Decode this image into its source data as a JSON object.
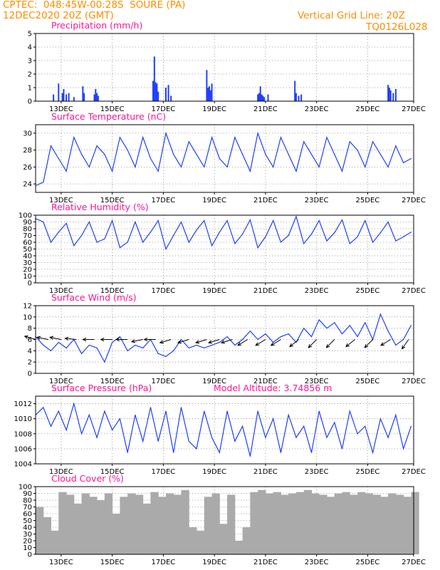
{
  "header": {
    "line1": "CPTEC:  048:45W-00:28S  SOURE (PA)",
    "line2": "12DEC2020 20Z (GMT)",
    "grid_note": "Vertical Grid Line: 20Z",
    "code": "TQ0126L028"
  },
  "colors": {
    "header": "#ff8c00",
    "title": "#ff1493",
    "series": "#1f3fff",
    "cloud": "#aaaaaa"
  },
  "x_ticks": [
    "13DEC",
    "15DEC",
    "17DEC",
    "19DEC",
    "21DEC",
    "23DEC",
    "25DEC",
    "27DEC"
  ],
  "chart_data": [
    {
      "type": "bar",
      "title": "Precipitation (mm/h)",
      "ylim": [
        0,
        5
      ],
      "yticks": [
        "0",
        "1",
        "2",
        "3",
        "4",
        "5"
      ],
      "x": [
        0.7,
        0.9,
        1.05,
        1.1,
        1.2,
        1.3,
        1.5,
        1.85,
        1.9,
        2.3,
        2.35,
        2.4,
        2.45,
        4.6,
        4.65,
        4.7,
        4.75,
        4.8,
        5.1,
        5.2,
        5.3,
        6.7,
        6.75,
        6.8,
        6.85,
        6.9,
        8.7,
        8.75,
        8.8,
        8.85,
        8.9,
        8.95,
        9.1,
        10.15,
        10.2,
        10.3,
        10.4,
        13.8,
        13.85,
        13.9,
        14.0,
        14.1
      ],
      "values": [
        0.5,
        1.3,
        0.6,
        0.9,
        0.5,
        0.6,
        0.3,
        1.1,
        0.6,
        0.5,
        0.9,
        0.6,
        0.4,
        1.5,
        3.3,
        1.4,
        1.3,
        0.7,
        1.0,
        1.2,
        0.4,
        2.3,
        1.0,
        1.1,
        0.8,
        1.3,
        0.5,
        0.6,
        1.1,
        0.5,
        0.4,
        0.3,
        0.5,
        1.5,
        0.6,
        0.4,
        0.5,
        1.2,
        1.0,
        0.8,
        0.6,
        0.9
      ]
    },
    {
      "type": "line",
      "title": "Surface Temperature (nC)",
      "ylim": [
        23,
        31
      ],
      "yticks": [
        "24",
        "26",
        "28",
        "30"
      ],
      "x": [
        0,
        0.3,
        0.6,
        0.9,
        1.2,
        1.5,
        1.8,
        2.1,
        2.4,
        2.7,
        3.0,
        3.3,
        3.6,
        3.9,
        4.2,
        4.5,
        4.8,
        5.1,
        5.4,
        5.7,
        6.0,
        6.3,
        6.6,
        6.9,
        7.2,
        7.5,
        7.8,
        8.1,
        8.4,
        8.7,
        9.0,
        9.3,
        9.6,
        9.9,
        10.2,
        10.5,
        10.8,
        11.1,
        11.4,
        11.7,
        12.0,
        12.3,
        12.6,
        12.9,
        13.2,
        13.5,
        13.8,
        14.1,
        14.4,
        14.7
      ],
      "y": [
        23.8,
        24.2,
        28.5,
        27.0,
        25.5,
        29.5,
        27.5,
        26.0,
        28.5,
        27.5,
        25.5,
        29.5,
        28.0,
        26.0,
        29.5,
        27.0,
        25.5,
        30.0,
        27.5,
        26.0,
        29.0,
        27.5,
        26.0,
        29.5,
        27.0,
        26.0,
        29.5,
        27.5,
        25.5,
        30.0,
        27.5,
        26.0,
        29.5,
        27.5,
        25.5,
        29.0,
        27.5,
        26.0,
        29.5,
        27.5,
        25.5,
        29.0,
        28.0,
        26.0,
        29.0,
        27.5,
        26.0,
        28.5,
        26.5,
        27.0
      ]
    },
    {
      "type": "line",
      "title": "Relative Humidity (%)",
      "ylim": [
        0,
        100
      ],
      "yticks": [
        "0",
        "10",
        "20",
        "30",
        "40",
        "50",
        "60",
        "70",
        "80",
        "90",
        "100"
      ],
      "x": [
        0,
        0.3,
        0.6,
        0.9,
        1.2,
        1.5,
        1.8,
        2.1,
        2.4,
        2.7,
        3.0,
        3.3,
        3.6,
        3.9,
        4.2,
        4.5,
        4.8,
        5.1,
        5.4,
        5.7,
        6.0,
        6.3,
        6.6,
        6.9,
        7.2,
        7.5,
        7.8,
        8.1,
        8.4,
        8.7,
        9.0,
        9.3,
        9.6,
        9.9,
        10.2,
        10.5,
        10.8,
        11.1,
        11.4,
        11.7,
        12.0,
        12.3,
        12.6,
        12.9,
        13.2,
        13.5,
        13.8,
        14.1,
        14.4,
        14.7
      ],
      "y": [
        95,
        90,
        60,
        75,
        88,
        55,
        70,
        90,
        60,
        65,
        92,
        52,
        60,
        90,
        60,
        75,
        92,
        50,
        70,
        90,
        60,
        78,
        92,
        55,
        75,
        92,
        58,
        72,
        93,
        52,
        68,
        92,
        60,
        70,
        98,
        58,
        72,
        92,
        62,
        74,
        93,
        58,
        68,
        92,
        60,
        74,
        90,
        62,
        68,
        75
      ]
    },
    {
      "type": "line",
      "title": "Surface Wind (m/s)",
      "ylim": [
        0,
        12
      ],
      "yticks": [
        "0",
        "2",
        "4",
        "6",
        "8",
        "10",
        "12"
      ],
      "x": [
        0,
        0.3,
        0.6,
        0.9,
        1.2,
        1.5,
        1.8,
        2.1,
        2.4,
        2.7,
        3.0,
        3.3,
        3.6,
        3.9,
        4.2,
        4.5,
        4.8,
        5.1,
        5.4,
        5.7,
        6.0,
        6.3,
        6.6,
        6.9,
        7.2,
        7.5,
        7.8,
        8.1,
        8.4,
        8.7,
        9.0,
        9.3,
        9.6,
        9.9,
        10.2,
        10.5,
        10.8,
        11.1,
        11.4,
        11.7,
        12.0,
        12.3,
        12.6,
        12.9,
        13.2,
        13.5,
        13.8,
        14.1,
        14.4,
        14.7
      ],
      "y": [
        6.5,
        5.0,
        4.0,
        5.5,
        4.5,
        6.0,
        3.5,
        5.0,
        4.5,
        2.0,
        5.5,
        6.5,
        4.0,
        5.0,
        4.5,
        6.0,
        3.5,
        3.0,
        4.0,
        6.0,
        4.5,
        5.0,
        4.5,
        5.0,
        5.5,
        6.5,
        5.0,
        6.0,
        7.5,
        6.0,
        7.0,
        5.5,
        6.5,
        7.0,
        5.5,
        8.0,
        6.5,
        9.5,
        8.0,
        9.0,
        7.0,
        8.5,
        6.5,
        9.0,
        6.0,
        10.5,
        7.5,
        5.0,
        6.0,
        8.5
      ],
      "arrows": [
        {
          "x": 0.0,
          "u": -1.0,
          "v": 0.3
        },
        {
          "x": 0.5,
          "u": -1.0,
          "v": 0.2
        },
        {
          "x": 1.0,
          "u": -1.0,
          "v": 0.2
        },
        {
          "x": 1.6,
          "u": -1.0,
          "v": 0.1
        },
        {
          "x": 2.3,
          "u": -1.0,
          "v": 0.0
        },
        {
          "x": 3.0,
          "u": -1.0,
          "v": 0.0
        },
        {
          "x": 3.6,
          "u": -1.0,
          "v": 0.0
        },
        {
          "x": 4.2,
          "u": -1.0,
          "v": -0.2
        },
        {
          "x": 4.7,
          "u": -1.0,
          "v": 0.0
        },
        {
          "x": 5.3,
          "u": -1.0,
          "v": -0.3
        },
        {
          "x": 6.0,
          "u": -1.0,
          "v": -0.3
        },
        {
          "x": 6.7,
          "u": -1.0,
          "v": -0.3
        },
        {
          "x": 7.2,
          "u": -1.0,
          "v": -0.3
        },
        {
          "x": 7.7,
          "u": -1.0,
          "v": -0.3
        },
        {
          "x": 8.3,
          "u": -1.0,
          "v": -0.6
        },
        {
          "x": 9.0,
          "u": -1.0,
          "v": -0.6
        },
        {
          "x": 9.6,
          "u": -1.0,
          "v": -0.6
        },
        {
          "x": 10.3,
          "u": -1.0,
          "v": -0.8
        },
        {
          "x": 11.0,
          "u": -1.0,
          "v": -1.0
        },
        {
          "x": 11.7,
          "u": -1.0,
          "v": -1.0
        },
        {
          "x": 12.5,
          "u": -1.0,
          "v": -0.8
        },
        {
          "x": 13.2,
          "u": -0.8,
          "v": -0.8
        },
        {
          "x": 13.9,
          "u": -1.0,
          "v": -0.6
        },
        {
          "x": 14.6,
          "u": -0.7,
          "v": -1.0
        }
      ]
    },
    {
      "type": "line",
      "title": "Surface Pressure (hPa)",
      "subtitle": "Model Altitude: 3.74856 m",
      "ylim": [
        1004,
        1013
      ],
      "yticks": [
        "1004",
        "1006",
        "1008",
        "1010",
        "1012"
      ],
      "x": [
        0,
        0.3,
        0.6,
        0.9,
        1.2,
        1.5,
        1.8,
        2.1,
        2.4,
        2.7,
        3.0,
        3.3,
        3.6,
        3.9,
        4.2,
        4.5,
        4.8,
        5.1,
        5.4,
        5.7,
        6.0,
        6.3,
        6.6,
        6.9,
        7.2,
        7.5,
        7.8,
        8.1,
        8.4,
        8.7,
        9.0,
        9.3,
        9.6,
        9.9,
        10.2,
        10.5,
        10.8,
        11.1,
        11.4,
        11.7,
        12.0,
        12.3,
        12.6,
        12.9,
        13.2,
        13.5,
        13.8,
        14.1,
        14.4,
        14.7
      ],
      "y": [
        1010.5,
        1011.5,
        1009.0,
        1011.0,
        1008.5,
        1012.0,
        1008.0,
        1010.5,
        1007.5,
        1011.0,
        1008.5,
        1010.0,
        1005.5,
        1010.5,
        1007.0,
        1011.5,
        1007.0,
        1011.0,
        1005.5,
        1011.5,
        1007.0,
        1006.0,
        1011.0,
        1007.5,
        1005.5,
        1011.0,
        1007.0,
        1009.0,
        1005.0,
        1011.0,
        1007.5,
        1010.0,
        1005.5,
        1010.5,
        1007.5,
        1009.0,
        1005.5,
        1011.0,
        1007.5,
        1009.5,
        1006.0,
        1011.0,
        1008.0,
        1009.0,
        1005.5,
        1010.0,
        1007.5,
        1010.5,
        1006.0,
        1009.0
      ]
    },
    {
      "type": "bar",
      "title": "Cloud Cover (%)",
      "ylim": [
        0,
        100
      ],
      "yticks": [
        "0",
        "10",
        "20",
        "30",
        "40",
        "50",
        "60",
        "70",
        "80",
        "90",
        "100"
      ],
      "x": [
        0.0,
        0.3,
        0.6,
        0.9,
        1.2,
        1.5,
        1.8,
        2.1,
        2.4,
        2.7,
        3.0,
        3.3,
        3.6,
        3.9,
        4.2,
        4.5,
        4.8,
        5.1,
        5.4,
        5.7,
        6.0,
        6.3,
        6.6,
        6.9,
        7.2,
        7.5,
        7.8,
        8.1,
        8.4,
        8.7,
        9.0,
        9.3,
        9.6,
        9.9,
        10.2,
        10.5,
        10.8,
        11.1,
        11.4,
        11.7,
        12.0,
        12.3,
        12.6,
        12.9,
        13.2,
        13.5,
        13.8,
        14.1,
        14.4,
        14.7
      ],
      "values": [
        70,
        55,
        35,
        92,
        88,
        75,
        90,
        85,
        80,
        90,
        60,
        85,
        90,
        88,
        75,
        92,
        85,
        90,
        88,
        95,
        40,
        35,
        85,
        90,
        45,
        88,
        20,
        40,
        92,
        95,
        90,
        92,
        88,
        90,
        92,
        95,
        90,
        88,
        85,
        90,
        92,
        88,
        92,
        90,
        88,
        85,
        90,
        88,
        85,
        92
      ]
    }
  ]
}
